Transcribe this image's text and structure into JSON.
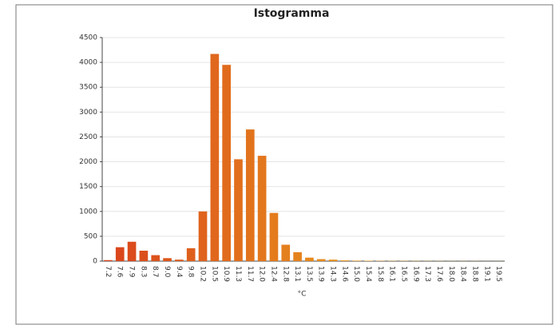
{
  "chart_data": {
    "type": "bar",
    "title": "Istogramma",
    "x_label": "°C",
    "categories": [
      "7.2",
      "7.6",
      "7.9",
      "8.3",
      "8.7",
      "9.0",
      "9.4",
      "9.8",
      "10.2",
      "10.5",
      "10.9",
      "11.3",
      "11.7",
      "12.0",
      "12.4",
      "12.8",
      "13.1",
      "13.5",
      "13.9",
      "14.3",
      "14.6",
      "15.0",
      "15.4",
      "15.8",
      "16.1",
      "16.5",
      "16.9",
      "17.3",
      "17.6",
      "18.0",
      "18.4",
      "18.8",
      "19.1",
      "19.5"
    ],
    "values": [
      20,
      280,
      390,
      210,
      120,
      60,
      30,
      260,
      1000,
      4170,
      3950,
      2050,
      2650,
      2120,
      970,
      330,
      180,
      70,
      40,
      30,
      15,
      10,
      8,
      6,
      5,
      5,
      4,
      3,
      3,
      2,
      2,
      2,
      1,
      1
    ],
    "color_from": "#d9431c",
    "color_to": "#f2c81e",
    "ylim": [
      0,
      4500
    ],
    "yticks": [
      0,
      500,
      1000,
      1500,
      2000,
      2500,
      3000,
      3500,
      4000,
      4500
    ],
    "grid": true
  }
}
